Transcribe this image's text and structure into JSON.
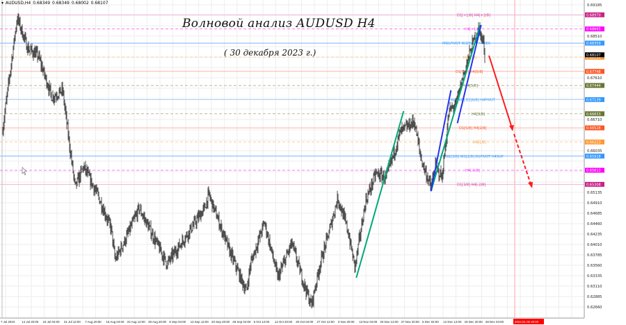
{
  "header": {
    "symbol": "AUDUSD,H4",
    "open": "0.68349",
    "high": "0.68349",
    "low": "0.68002",
    "close": "0.68107",
    "icon": "dropdown-triangle-icon"
  },
  "annotations": {
    "title": "Волновой анализ AUDUSD H4",
    "date": "( 30 декабря 2023 г.)"
  },
  "chart_data": {
    "type": "candlestick",
    "symbol": "AUDUSD",
    "timeframe": "H4",
    "ylim": [
      0.626,
      0.692
    ],
    "grid": true,
    "current_price": {
      "value": "0.68107",
      "color": "#000000"
    },
    "y_ticks": [
      "0.69185",
      "0.68960",
      "0.68735",
      "0.68510",
      "0.68285",
      "0.68060",
      "0.67835",
      "0.67610",
      "0.67385",
      "0.67160",
      "0.66935",
      "0.66710",
      "0.66485",
      "0.66260",
      "0.66035",
      "0.65810",
      "0.65585",
      "0.65360",
      "0.65135",
      "0.64910",
      "0.64685",
      "0.64460",
      "0.64235",
      "0.64010",
      "0.63785",
      "0.63560",
      "0.63335",
      "0.63110",
      "0.62885",
      "0.62660"
    ],
    "x_ticks": [
      "7 Jul 2023",
      "14 Jul 20:00",
      "24 Jul 04:00",
      "31 Jul 12:00",
      "7 Aug 20:00",
      "15 Aug 04:00",
      "22 Aug 12:00",
      "29 Aug 20:00",
      "6 Sep 04:00",
      "13 Sep 12:00",
      "20 Sep 20:00",
      "28 Sep 04:00",
      "5 Oct 12:00",
      "12 Oct 20:00",
      "20 Oct 04:00",
      "27 Oct 12:00",
      "3 Nov 20:00",
      "13 Nov 04:00",
      "20 Nov 12:00",
      "27 Nov 20:00",
      "5 Dec 04:00",
      "12 Dec 12:00",
      "19 Dec 20:00",
      "28 Dec 04:00"
    ],
    "x_marker": {
      "label": "2024.01.05 20:00",
      "color": "#ff0000"
    },
    "price_path": [
      {
        "t": "2023-07-07T20:00",
        "p": 0.6644
      },
      {
        "t": "2023-07-13T04:00",
        "p": 0.6891
      },
      {
        "t": "2023-07-17T00:00",
        "p": 0.6824
      },
      {
        "t": "2023-07-20T16:00",
        "p": 0.6809
      },
      {
        "t": "2023-07-25T16:00",
        "p": 0.6719
      },
      {
        "t": "2023-07-29T12:00",
        "p": 0.6734
      },
      {
        "t": "2023-08-01T00:00",
        "p": 0.6614
      },
      {
        "t": "2023-08-03T00:00",
        "p": 0.6524
      },
      {
        "t": "2023-08-06T00:00",
        "p": 0.6569
      },
      {
        "t": "2023-08-11T00:00",
        "p": 0.6509
      },
      {
        "t": "2023-08-16T00:00",
        "p": 0.6434
      },
      {
        "t": "2023-08-17T08:00",
        "p": 0.6367
      },
      {
        "t": "2023-08-21T00:00",
        "p": 0.6411
      },
      {
        "t": "2023-08-26T00:00",
        "p": 0.6479
      },
      {
        "t": "2023-08-31T00:00",
        "p": 0.6419
      },
      {
        "t": "2023-09-05T00:00",
        "p": 0.6359
      },
      {
        "t": "2023-09-13T12:00",
        "p": 0.6434
      },
      {
        "t": "2023-09-18T12:00",
        "p": 0.6479
      },
      {
        "t": "2023-09-20T00:00",
        "p": 0.6509
      },
      {
        "t": "2023-09-27T08:00",
        "p": 0.6389
      },
      {
        "t": "2023-10-03T12:00",
        "p": 0.6299
      },
      {
        "t": "2023-10-05T00:00",
        "p": 0.6359
      },
      {
        "t": "2023-10-10T00:00",
        "p": 0.6449
      },
      {
        "t": "2023-10-14T20:00",
        "p": 0.6329
      },
      {
        "t": "2023-10-19T20:00",
        "p": 0.6404
      },
      {
        "t": "2023-10-23T12:00",
        "p": 0.6329
      },
      {
        "t": "2023-10-26T20:00",
        "p": 0.6269
      },
      {
        "t": "2023-10-30T00:00",
        "p": 0.6359
      },
      {
        "t": "2023-11-02T12:00",
        "p": 0.6434
      },
      {
        "t": "2023-11-05T08:00",
        "p": 0.6502
      },
      {
        "t": "2023-11-08T20:00",
        "p": 0.6434
      },
      {
        "t": "2023-11-11T12:00",
        "p": 0.6352
      },
      {
        "t": "2023-11-15T08:00",
        "p": 0.6494
      },
      {
        "t": "2023-11-19T00:00",
        "p": 0.6554
      },
      {
        "t": "2023-11-22T20:00",
        "p": 0.6546
      },
      {
        "t": "2023-11-27T20:00",
        "p": 0.6644
      },
      {
        "t": "2023-12-02T20:00",
        "p": 0.6667
      },
      {
        "t": "2023-12-05T08:00",
        "p": 0.6584
      },
      {
        "t": "2023-12-08T20:00",
        "p": 0.6524
      },
      {
        "t": "2023-12-10T08:00",
        "p": 0.6569
      },
      {
        "t": "2023-12-12T20:00",
        "p": 0.6546
      },
      {
        "t": "2023-12-15T08:00",
        "p": 0.6689
      },
      {
        "t": "2023-12-17T20:00",
        "p": 0.6704
      },
      {
        "t": "2023-12-20T08:00",
        "p": 0.6764
      },
      {
        "t": "2023-12-24T00:00",
        "p": 0.6839
      },
      {
        "t": "2023-12-26T00:00",
        "p": 0.6869
      },
      {
        "t": "2023-12-27T20:00",
        "p": 0.6832
      },
      {
        "t": "2023-12-28T04:00",
        "p": 0.6811
      }
    ],
    "levels": [
      {
        "price": "0.68970",
        "label": "D1[+1/8] H4[+2/8]",
        "line": "#f0b8d8",
        "tag": "#cc2288",
        "text": "#cc3399",
        "dash": false
      },
      {
        "price": "0.68665",
        "label": "H4[+1/8]",
        "line": "#ff77ff",
        "tag": "#ff00ff",
        "text": "#ff33ff",
        "dash": true
      },
      {
        "price": "0.68359",
        "label": "MN1PIVOT W1PIVOT H4RES",
        "line": "#77b4ff",
        "tag": "#3399ff",
        "text": "#3399ff",
        "dash": false
      },
      {
        "price": "0.68054",
        "label": "H4[7/8]",
        "line": "#ffcf99",
        "tag": "#ff9933",
        "text": "#ff9933",
        "dash": true
      },
      {
        "price": "0.67748",
        "label": "D1[7/8] H4[6/8]",
        "line": "#ffb3a0",
        "tag": "#ff5522",
        "text": "#ff5522",
        "dash": false
      },
      {
        "price": "0.67444",
        "label": "H4[5/8]",
        "line": "#b8b89a",
        "tag": "#667733",
        "text": "#667733",
        "dash": true
      },
      {
        "price": "0.67139",
        "label": "W1[3/8] D1[6/8] H4PIVOT",
        "line": "#a8d0ff",
        "tag": "#3399ff",
        "text": "#3399ff",
        "dash": false
      },
      {
        "price": "0.66833",
        "label": "H4[3/8]",
        "line": "#b8b89a",
        "tag": "#667733",
        "text": "#667733",
        "dash": true
      },
      {
        "price": "0.66528",
        "label": "D1[5/8] H4[2/8]",
        "line": "#ffb3a0",
        "tag": "#ff5522",
        "text": "#ff5522",
        "dash": false
      },
      {
        "price": "0.66223",
        "label": "H4[1/8]",
        "line": "#ffcf99",
        "tag": "#ff9933",
        "text": "#ff9933",
        "dash": true
      },
      {
        "price": "0.65918",
        "label": "MN1[3/8] W1[2/8] D1PIVOT H4SUP",
        "line": "#77b4ff",
        "tag": "#3399ff",
        "text": "#3399ff",
        "dash": false
      },
      {
        "price": "0.65613",
        "label": "H4[-1/8]",
        "line": "#ff77ff",
        "tag": "#ff00ff",
        "text": "#ff33ff",
        "dash": true
      },
      {
        "price": "0.65308",
        "label": "D1[3/8] H4[-2/8]",
        "line": "#f0b8d8",
        "tag": "#cc2288",
        "text": "#cc3399",
        "dash": false
      }
    ],
    "trend_lines": [
      {
        "color": "#00a878",
        "from": {
          "t": "2023-11-12T00:00",
          "p": 0.6329
        },
        "to": {
          "t": "2023-11-29T00:00",
          "p": 0.6689
        }
      },
      {
        "color": "#00a878",
        "from": {
          "t": "2023-12-08T20:00",
          "p": 0.6516
        },
        "to": {
          "t": "2023-12-26T12:00",
          "p": 0.6875
        }
      },
      {
        "color": "#2233ee",
        "from": {
          "t": "2023-12-08T20:00",
          "p": 0.6516
        },
        "to": {
          "t": "2023-12-16T00:00",
          "p": 0.6734
        }
      },
      {
        "color": "#2233ee",
        "from": {
          "t": "2023-12-18T08:00",
          "p": 0.6663
        },
        "to": {
          "t": "2023-12-26T20:00",
          "p": 0.6875
        }
      }
    ],
    "forecast": {
      "color": "#ff1a1a"
    }
  }
}
